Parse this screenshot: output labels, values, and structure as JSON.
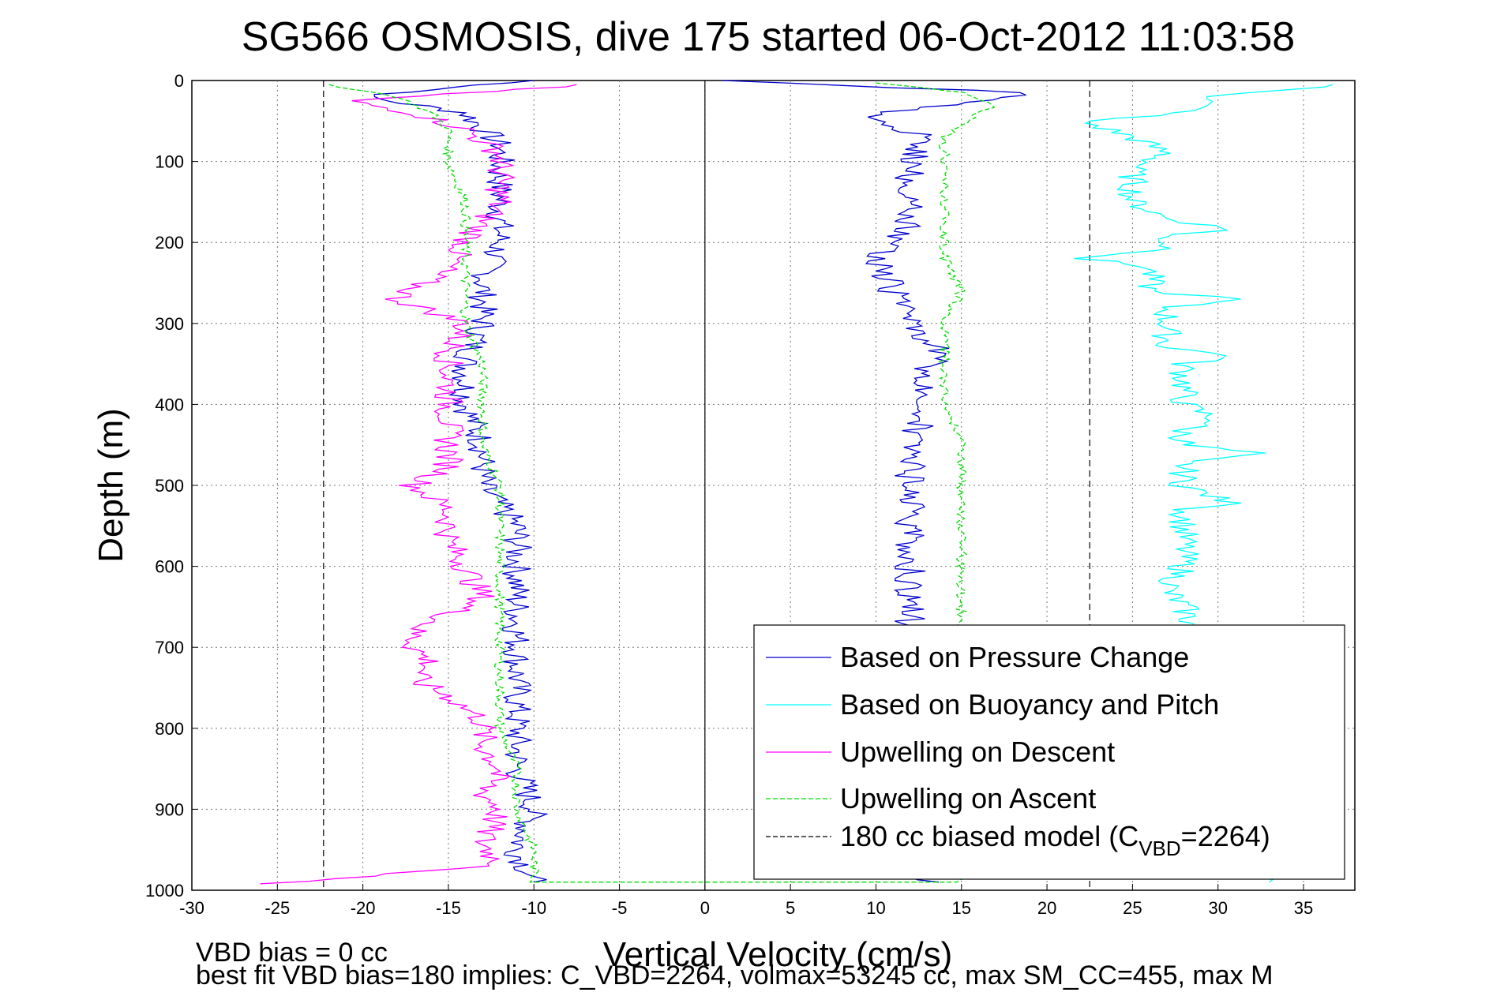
{
  "chart_data": {
    "type": "line",
    "title": "SG566 OSMOSIS, dive 175 started 06-Oct-2012 11:03:58",
    "xlabel": "Vertical Velocity (cm/s)",
    "ylabel": "Depth (m)",
    "xlim": [
      -30,
      38
    ],
    "ylim": [
      0,
      1000
    ],
    "y_reversed": true,
    "grid": true,
    "x_ticks": [
      -30,
      -25,
      -20,
      -15,
      -10,
      -5,
      0,
      5,
      10,
      15,
      20,
      25,
      30,
      35
    ],
    "y_ticks": [
      0,
      100,
      200,
      300,
      400,
      500,
      600,
      700,
      800,
      900,
      1000
    ],
    "legend_position": "bottom-right",
    "colors": {
      "pressure": "#0000cc",
      "buoyancy": "#00ffff",
      "descent": "#ff00ff",
      "ascent": "#00dd00",
      "model": "#000000",
      "zero_line": "#000000"
    },
    "series": [
      {
        "name": "Based on Pressure Change",
        "key": "pressure",
        "style": "solid",
        "points_descent": [
          [
            -10,
            0
          ],
          [
            -20,
            20
          ],
          [
            -14,
            40
          ],
          [
            -12,
            80
          ],
          [
            -12,
            150
          ],
          [
            -12,
            200
          ],
          [
            -13,
            250
          ],
          [
            -13,
            300
          ],
          [
            -14,
            350
          ],
          [
            -14,
            400
          ],
          [
            -13,
            450
          ],
          [
            -13,
            500
          ],
          [
            -11,
            550
          ],
          [
            -11,
            600
          ],
          [
            -11,
            650
          ],
          [
            -11,
            700
          ],
          [
            -11,
            750
          ],
          [
            -11,
            800
          ],
          [
            -11,
            850
          ],
          [
            -10,
            900
          ],
          [
            -11,
            950
          ],
          [
            -10,
            990
          ]
        ],
        "points_ascent": [
          [
            13,
            990
          ],
          [
            13,
            960
          ],
          [
            13,
            900
          ],
          [
            13,
            850
          ],
          [
            12,
            800
          ],
          [
            12,
            750
          ],
          [
            12,
            700
          ],
          [
            12,
            650
          ],
          [
            12,
            600
          ],
          [
            12,
            550
          ],
          [
            12,
            500
          ],
          [
            12,
            450
          ],
          [
            13,
            400
          ],
          [
            13,
            350
          ],
          [
            14,
            340
          ],
          [
            12,
            300
          ],
          [
            11,
            260
          ],
          [
            10,
            220
          ],
          [
            12,
            180
          ],
          [
            12,
            150
          ],
          [
            12,
            100
          ],
          [
            13,
            70
          ],
          [
            9,
            45
          ],
          [
            14,
            30
          ],
          [
            19,
            15
          ],
          [
            1,
            0
          ]
        ]
      },
      {
        "name": "Based on Buoyancy and Pitch",
        "key": "buoyancy",
        "style": "solid",
        "points": [
          [
            37,
            5
          ],
          [
            30,
            20
          ],
          [
            28,
            40
          ],
          [
            22,
            50
          ],
          [
            25,
            70
          ],
          [
            27,
            90
          ],
          [
            25,
            110
          ],
          [
            25,
            150
          ],
          [
            27,
            170
          ],
          [
            31,
            185
          ],
          [
            27,
            190
          ],
          [
            27,
            210
          ],
          [
            22,
            220
          ],
          [
            26,
            230
          ],
          [
            26,
            260
          ],
          [
            31,
            270
          ],
          [
            27,
            280
          ],
          [
            27,
            330
          ],
          [
            31,
            340
          ],
          [
            28,
            350
          ],
          [
            28,
            400
          ],
          [
            30,
            420
          ],
          [
            28,
            430
          ],
          [
            28,
            450
          ],
          [
            32,
            460
          ],
          [
            28,
            470
          ],
          [
            28,
            500
          ],
          [
            31,
            525
          ],
          [
            28,
            530
          ],
          [
            28,
            600
          ],
          [
            27,
            630
          ],
          [
            28,
            650
          ],
          [
            29,
            700
          ],
          [
            30,
            750
          ],
          [
            30,
            800
          ],
          [
            31,
            850
          ],
          [
            31,
            900
          ],
          [
            32,
            950
          ],
          [
            33,
            990
          ]
        ]
      },
      {
        "name": "Upwelling on Descent",
        "key": "descent",
        "style": "solid",
        "points": [
          [
            -7,
            5
          ],
          [
            -21,
            25
          ],
          [
            -17,
            40
          ],
          [
            -14,
            60
          ],
          [
            -12,
            90
          ],
          [
            -12,
            120
          ],
          [
            -12,
            150
          ],
          [
            -14,
            200
          ],
          [
            -15,
            230
          ],
          [
            -18,
            270
          ],
          [
            -14,
            300
          ],
          [
            -15,
            340
          ],
          [
            -15,
            400
          ],
          [
            -15,
            450
          ],
          [
            -15,
            480
          ],
          [
            -17,
            500
          ],
          [
            -15,
            530
          ],
          [
            -15,
            570
          ],
          [
            -14,
            600
          ],
          [
            -13,
            640
          ],
          [
            -15,
            660
          ],
          [
            -17,
            680
          ],
          [
            -17,
            700
          ],
          [
            -16,
            720
          ],
          [
            -17,
            740
          ],
          [
            -15,
            760
          ],
          [
            -13,
            790
          ],
          [
            -13,
            820
          ],
          [
            -12,
            850
          ],
          [
            -13,
            880
          ],
          [
            -12,
            900
          ],
          [
            -13,
            940
          ],
          [
            -12,
            970
          ],
          [
            -26,
            992
          ]
        ]
      },
      {
        "name": "Upwelling on Ascent",
        "key": "ascent",
        "style": "dashed",
        "points": [
          [
            -22,
            5
          ],
          [
            -18,
            20
          ],
          [
            -16,
            40
          ],
          [
            -15,
            60
          ],
          [
            -15,
            100
          ],
          [
            -14,
            150
          ],
          [
            -14,
            200
          ],
          [
            -14,
            250
          ],
          [
            -14,
            300
          ],
          [
            -13,
            350
          ],
          [
            -13,
            400
          ],
          [
            -13,
            450
          ],
          [
            -12,
            500
          ],
          [
            -12,
            550
          ],
          [
            -12,
            600
          ],
          [
            -12,
            650
          ],
          [
            -12,
            700
          ],
          [
            -12,
            750
          ],
          [
            -12,
            800
          ],
          [
            -11,
            850
          ],
          [
            -11,
            900
          ],
          [
            -10,
            950
          ],
          [
            -10,
            990
          ],
          [
            15,
            990
          ],
          [
            15,
            950
          ],
          [
            15,
            900
          ],
          [
            15,
            850
          ],
          [
            15,
            800
          ],
          [
            15,
            750
          ],
          [
            15,
            700
          ],
          [
            15,
            650
          ],
          [
            15,
            600
          ],
          [
            15,
            550
          ],
          [
            15,
            500
          ],
          [
            15,
            450
          ],
          [
            14,
            400
          ],
          [
            14,
            350
          ],
          [
            14,
            300
          ],
          [
            15,
            260
          ],
          [
            14,
            220
          ],
          [
            14,
            180
          ],
          [
            14,
            150
          ],
          [
            14,
            100
          ],
          [
            14,
            70
          ],
          [
            16,
            40
          ],
          [
            17,
            30
          ],
          [
            15,
            15
          ],
          [
            10,
            3
          ]
        ]
      },
      {
        "name": "180 cc biased model (C",
        "key": "model",
        "style": "dashed",
        "vertical_lines_x": [
          -22.3,
          22.5
        ]
      }
    ],
    "legend": {
      "entries": [
        "Based on Pressure Change",
        "Based on Buoyancy and Pitch",
        "Upwelling on Descent",
        "Upwelling on Ascent",
        "180 cc biased model (C"
      ],
      "model_subscript": "VBD",
      "model_suffix": "=2264)"
    },
    "footnotes": [
      "VBD bias = 0 cc",
      "best fit VBD bias=180 implies: C_VBD=2264, volmax=53245 cc, max SM_CC=455, max M"
    ]
  }
}
